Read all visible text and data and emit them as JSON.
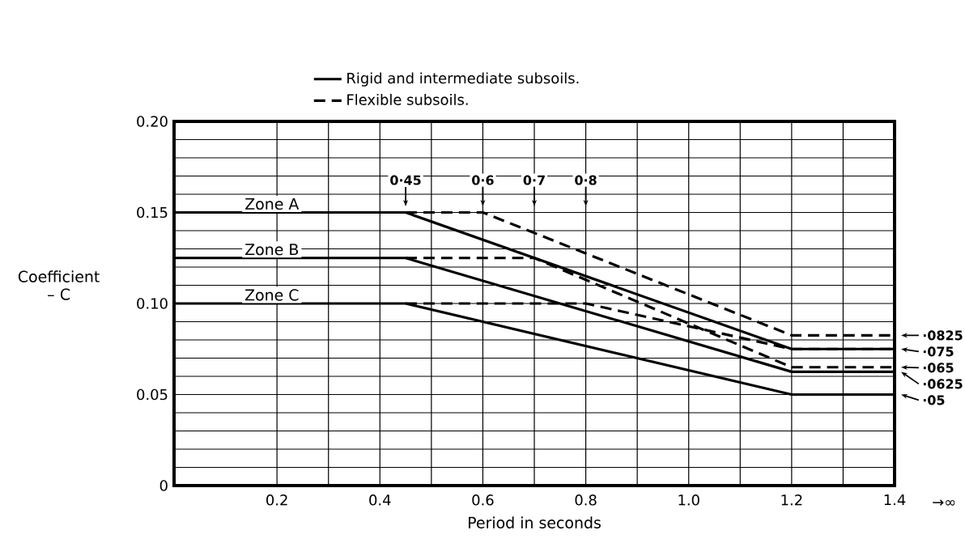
{
  "chart_data": {
    "type": "line",
    "xlabel": "Period in seconds",
    "ylabel": "Coefficient – C",
    "xlim": [
      0,
      1.4
    ],
    "ylim": [
      0,
      0.2
    ],
    "xticks": [
      {
        "value": 0.2,
        "label": "0.2"
      },
      {
        "value": 0.4,
        "label": "0.4"
      },
      {
        "value": 0.6,
        "label": "0.6"
      },
      {
        "value": 0.8,
        "label": "0.8"
      },
      {
        "value": 1.0,
        "label": "1.0"
      },
      {
        "value": 1.2,
        "label": "1.2"
      },
      {
        "value": 1.4,
        "label": "1.4"
      }
    ],
    "yticks": [
      {
        "value": 0,
        "label": "0"
      },
      {
        "value": 0.05,
        "label": "0.05"
      },
      {
        "value": 0.1,
        "label": "0.10"
      },
      {
        "value": 0.15,
        "label": "0.15"
      },
      {
        "value": 0.2,
        "label": "0.20"
      }
    ],
    "grid": true,
    "legend": "top",
    "series": [
      {
        "name": "Rigid and intermediate subsoils.",
        "color": "#000000",
        "line_style": "solid",
        "x": [
          0,
          0.45,
          1.2,
          1.4
        ],
        "values": [
          0.15,
          0.15,
          0.075,
          0.075
        ]
      },
      {
        "name": "Flexible subsoils.",
        "color": "#000000",
        "line_style": "dashed",
        "x": [
          0.45,
          0.6,
          1.2,
          1.4
        ],
        "values": [
          0.15,
          0.15,
          0.0825,
          0.0825
        ]
      },
      {
        "color": "#000000",
        "line_style": "solid",
        "x": [
          0,
          0.45,
          1.2,
          1.4
        ],
        "values": [
          0.125,
          0.125,
          0.0625,
          0.0625
        ]
      },
      {
        "color": "#000000",
        "line_style": "dashed",
        "x": [
          0.45,
          0.7,
          1.2,
          1.4
        ],
        "values": [
          0.125,
          0.125,
          0.065,
          0.065
        ]
      },
      {
        "color": "#000000",
        "line_style": "solid",
        "x": [
          0,
          0.45,
          1.2,
          1.4
        ],
        "values": [
          0.1,
          0.1,
          0.05,
          0.05
        ]
      },
      {
        "color": "#000000",
        "line_style": "dashed",
        "x": [
          0.45,
          0.8,
          1.2,
          1.4
        ],
        "values": [
          0.1,
          0.1,
          0.075,
          0.075
        ]
      }
    ],
    "annotations": [
      {
        "text": "Zone A",
        "x": 0.19,
        "y": 0.15
      },
      {
        "text": "Zone B",
        "x": 0.19,
        "y": 0.125
      },
      {
        "text": "Zone C",
        "x": 0.19,
        "y": 0.1
      },
      {
        "text": "0·45",
        "x": 0.45
      },
      {
        "text": "0·6",
        "x": 0.6
      },
      {
        "text": "0·7",
        "x": 0.7
      },
      {
        "text": "0·8",
        "x": 0.8
      },
      {
        "text": "·0825",
        "x": 1.4,
        "y": 0.0825
      },
      {
        "text": "·075",
        "x": 1.4,
        "y": 0.075
      },
      {
        "text": "·065",
        "x": 1.4,
        "y": 0.065
      },
      {
        "text": "·0625",
        "x": 1.4,
        "y": 0.0625
      },
      {
        "text": "·05",
        "x": 1.4,
        "y": 0.05
      },
      "→∞"
    ]
  }
}
